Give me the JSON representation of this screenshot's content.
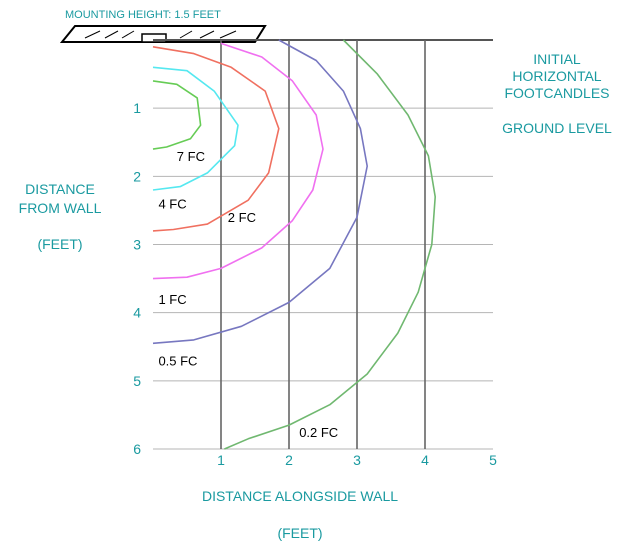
{
  "chart_data": {
    "type": "line",
    "title_lines": [
      "INITIAL",
      "HORIZONTAL",
      "FOOTCANDLES"
    ],
    "subtitle": "GROUND LEVEL",
    "mounting_label": "MOUNTING HEIGHT: 1.5 FEET",
    "xlabel": "DISTANCE ALONGSIDE WALL",
    "xlabel_units": "(FEET)",
    "ylabel_lines": [
      "DISTANCE",
      "FROM WALL"
    ],
    "ylabel_units": "(FEET)",
    "xlim": [
      0,
      5
    ],
    "ylim": [
      0,
      6
    ],
    "y_inverted": true,
    "grid": true,
    "x_ticks": [
      "1",
      "2",
      "3",
      "4",
      "5"
    ],
    "y_ticks": [
      "1",
      "2",
      "3",
      "4",
      "5",
      "6"
    ],
    "series": [
      {
        "name": "7 FC",
        "color": "#66cc55",
        "label_at": [
          0.35,
          1.7
        ],
        "points": [
          [
            0,
            0.6
          ],
          [
            0.35,
            0.65
          ],
          [
            0.65,
            0.85
          ],
          [
            0.7,
            1.25
          ],
          [
            0.55,
            1.45
          ],
          [
            0.2,
            1.57
          ],
          [
            0,
            1.6
          ]
        ]
      },
      {
        "name": "4 FC",
        "color": "#55e8f0",
        "label_at": [
          0.08,
          2.4
        ],
        "points": [
          [
            0,
            0.4
          ],
          [
            0.5,
            0.45
          ],
          [
            0.9,
            0.75
          ],
          [
            1.25,
            1.25
          ],
          [
            1.2,
            1.55
          ],
          [
            0.8,
            1.95
          ],
          [
            0.4,
            2.15
          ],
          [
            0,
            2.2
          ]
        ]
      },
      {
        "name": "2 FC",
        "color": "#f07060",
        "label_at": [
          1.1,
          2.6
        ],
        "points": [
          [
            0,
            0.1
          ],
          [
            0.6,
            0.2
          ],
          [
            1.15,
            0.4
          ],
          [
            1.65,
            0.75
          ],
          [
            1.85,
            1.3
          ],
          [
            1.7,
            1.95
          ],
          [
            1.4,
            2.35
          ],
          [
            0.8,
            2.7
          ],
          [
            0.3,
            2.78
          ],
          [
            0,
            2.8
          ]
        ]
      },
      {
        "name": "1 FC",
        "color": "#f070f0",
        "label_at": [
          0.08,
          3.8
        ],
        "points": [
          [
            1.0,
            0.05
          ],
          [
            1.6,
            0.25
          ],
          [
            2.05,
            0.6
          ],
          [
            2.4,
            1.1
          ],
          [
            2.5,
            1.6
          ],
          [
            2.35,
            2.2
          ],
          [
            2.05,
            2.65
          ],
          [
            1.6,
            3.05
          ],
          [
            1.0,
            3.35
          ],
          [
            0.5,
            3.48
          ],
          [
            0,
            3.5
          ]
        ]
      },
      {
        "name": "0.5 FC",
        "color": "#7777c0",
        "label_at": [
          0.08,
          4.7
        ],
        "points": [
          [
            1.85,
            0.0
          ],
          [
            2.4,
            0.3
          ],
          [
            2.8,
            0.75
          ],
          [
            3.05,
            1.3
          ],
          [
            3.15,
            1.85
          ],
          [
            3.0,
            2.6
          ],
          [
            2.6,
            3.35
          ],
          [
            2.0,
            3.85
          ],
          [
            1.3,
            4.2
          ],
          [
            0.6,
            4.4
          ],
          [
            0,
            4.45
          ]
        ]
      },
      {
        "name": "0.2 FC",
        "color": "#70b870",
        "label_at": [
          2.15,
          5.75
        ],
        "points": [
          [
            2.8,
            0.0
          ],
          [
            3.3,
            0.5
          ],
          [
            3.75,
            1.1
          ],
          [
            4.05,
            1.7
          ],
          [
            4.15,
            2.3
          ],
          [
            4.1,
            3.0
          ],
          [
            3.9,
            3.7
          ],
          [
            3.6,
            4.3
          ],
          [
            3.15,
            4.9
          ],
          [
            2.6,
            5.35
          ],
          [
            2.0,
            5.65
          ],
          [
            1.4,
            5.85
          ],
          [
            1.05,
            6.0
          ]
        ]
      }
    ]
  }
}
